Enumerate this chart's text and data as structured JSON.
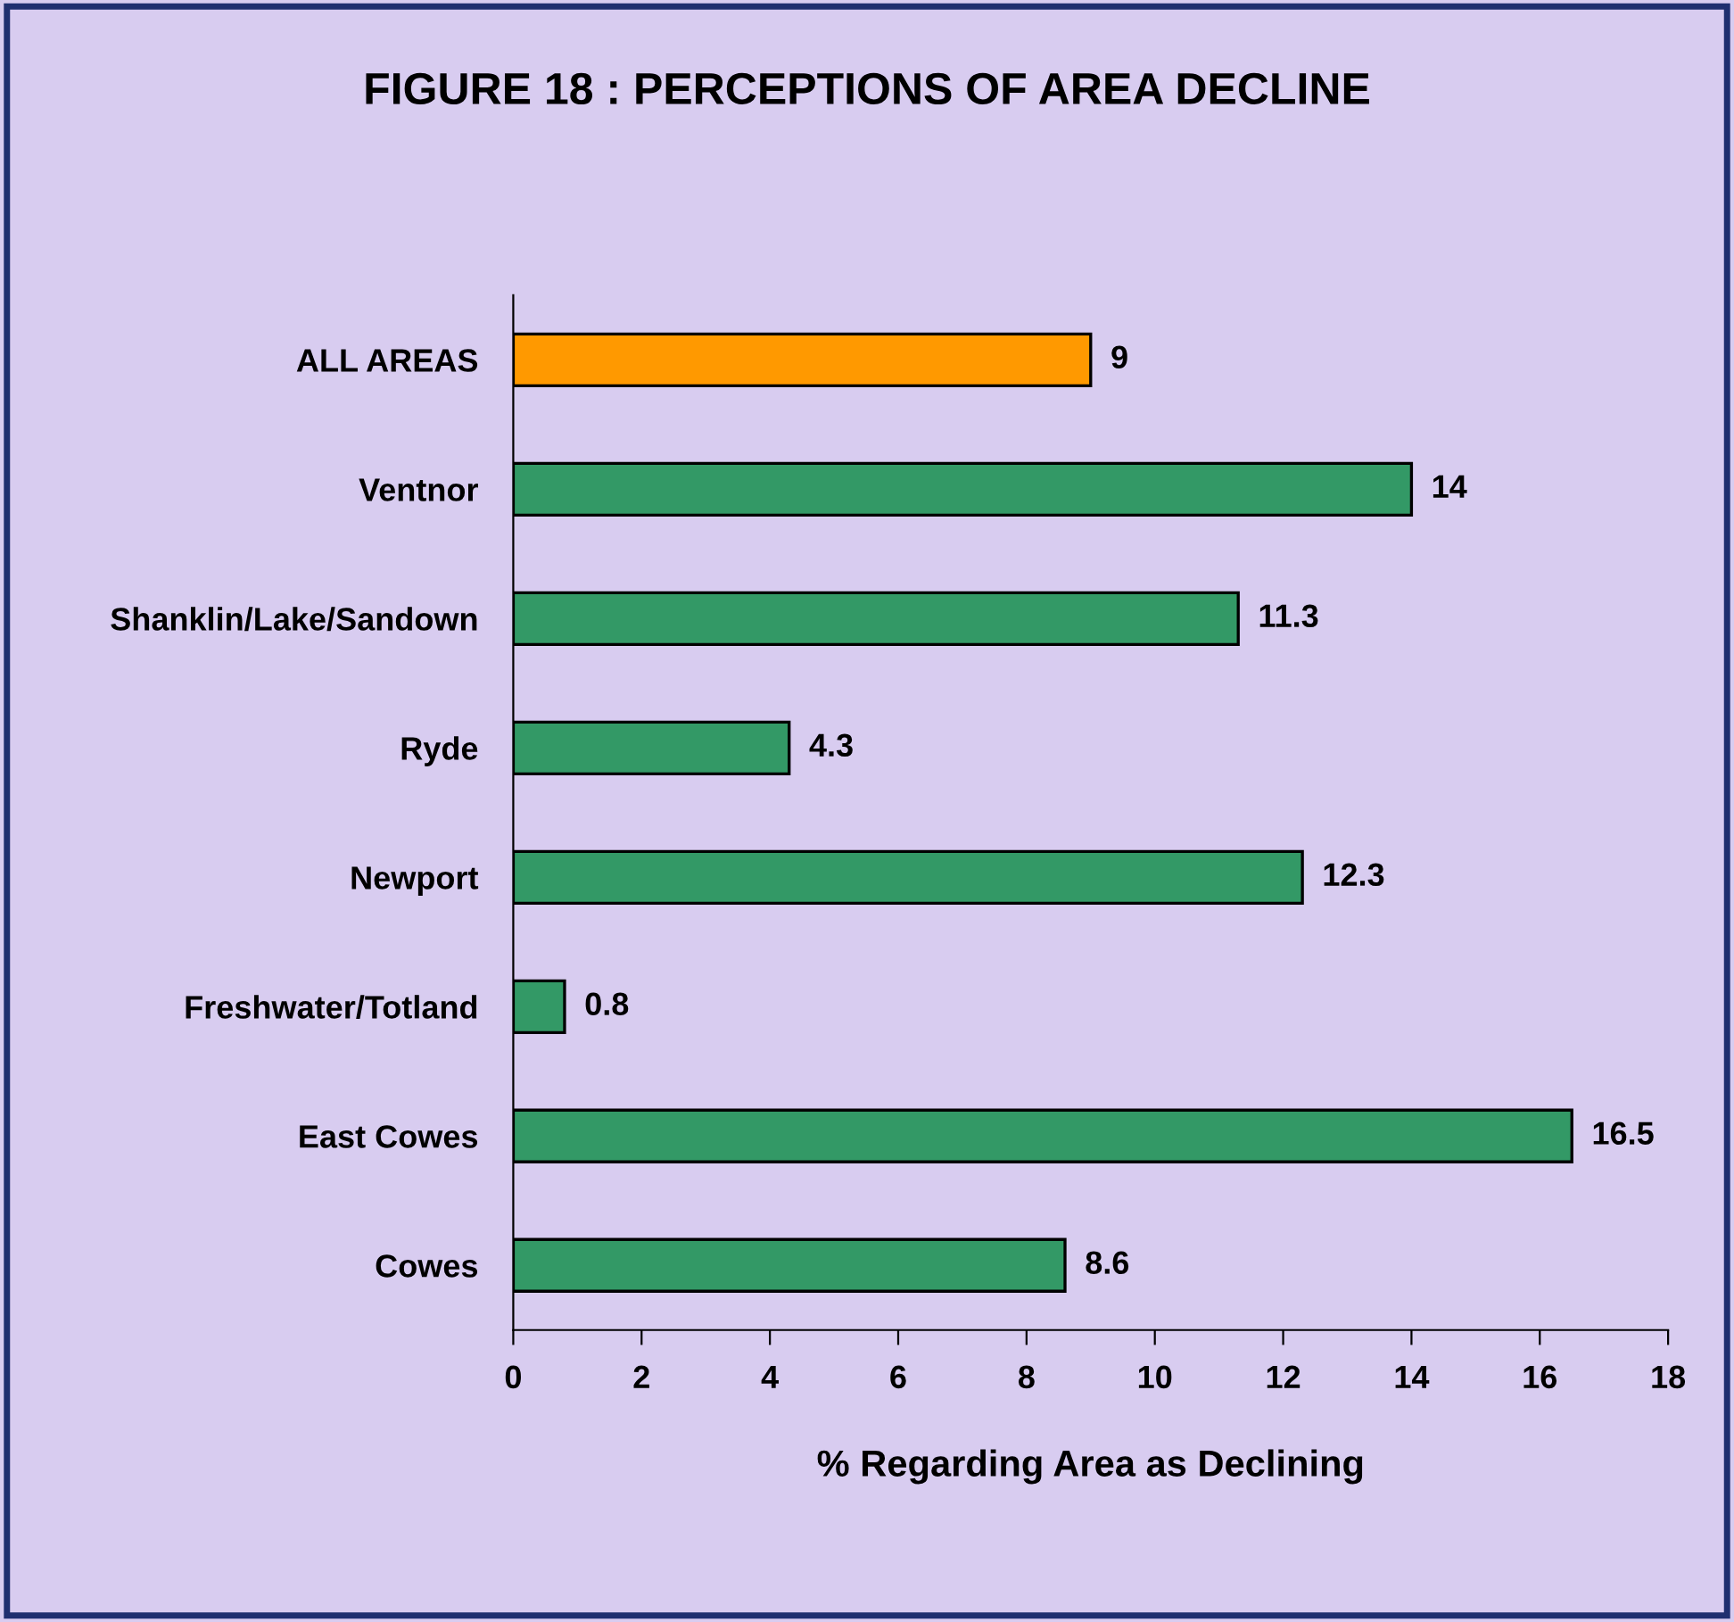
{
  "chart_data": {
    "type": "bar",
    "orientation": "horizontal",
    "title": "FIGURE 18 : PERCEPTIONS OF AREA DECLINE",
    "xlabel": "% Regarding Area as Declining",
    "categories": [
      "ALL AREAS",
      "Ventnor",
      "Shanklin/Lake/Sandown",
      "Ryde",
      "Newport",
      "Freshwater/Totland",
      "East Cowes",
      "Cowes"
    ],
    "values": [
      9,
      14,
      11.3,
      4.3,
      12.3,
      0.8,
      16.5,
      8.6
    ],
    "colors": [
      "#ff9900",
      "#339966",
      "#339966",
      "#339966",
      "#339966",
      "#339966",
      "#339966",
      "#339966"
    ],
    "xlim": [
      0,
      18
    ],
    "xticks": [
      0,
      2,
      4,
      6,
      8,
      10,
      12,
      14,
      16,
      18
    ],
    "data_labels": true,
    "grid": false,
    "legend": false
  }
}
